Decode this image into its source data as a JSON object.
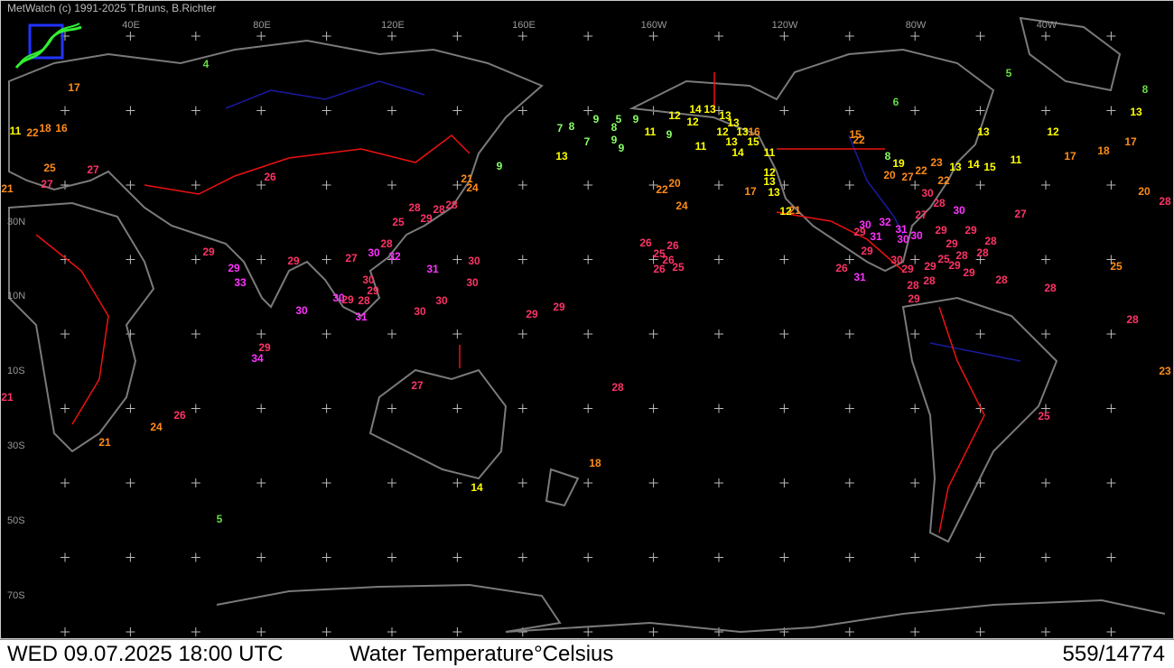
{
  "header": {
    "credit": "MetWatch  (c) 1991-2025 T.Bruns, B.Richter"
  },
  "longitude_labels": [
    "40E",
    "80E",
    "120E",
    "160E",
    "160W",
    "120W",
    "80W",
    "40W"
  ],
  "latitude_labels": [
    "30N",
    "10N",
    "10S",
    "30S",
    "50S",
    "70S"
  ],
  "footer": {
    "datetime": "WED 09.07.2025 18:00 UTC",
    "title": "Water Temperature°Celsius",
    "count": "559/14774"
  },
  "stations": [
    {
      "value": "4",
      "color": "#66dd44"
    },
    {
      "value": "5",
      "color": "#66dd44"
    },
    {
      "value": "8",
      "color": "#66dd44"
    },
    {
      "value": "6",
      "color": "#66dd44"
    },
    {
      "value": "13",
      "color": "#ffff00"
    },
    {
      "value": "12",
      "color": "#ffff00"
    },
    {
      "value": "13",
      "color": "#ffff00"
    },
    {
      "value": "11",
      "color": "#ffff00"
    },
    {
      "value": "17",
      "color": "#ff8c1a"
    },
    {
      "value": "17",
      "color": "#ff8c1a"
    },
    {
      "value": "18",
      "color": "#ff8c1a"
    },
    {
      "value": "7",
      "color": "#88ff66"
    },
    {
      "value": "8",
      "color": "#88ff66"
    },
    {
      "value": "9",
      "color": "#88ff66"
    },
    {
      "value": "5",
      "color": "#88ff66"
    },
    {
      "value": "9",
      "color": "#88ff66"
    },
    {
      "value": "8",
      "color": "#88ff66"
    },
    {
      "value": "9",
      "color": "#88ff66"
    },
    {
      "value": "9",
      "color": "#88ff66"
    },
    {
      "value": "7",
      "color": "#88ff66"
    },
    {
      "value": "11",
      "color": "#ffff00"
    },
    {
      "value": "9",
      "color": "#88ff66"
    },
    {
      "value": "13",
      "color": "#ffff00"
    },
    {
      "value": "9",
      "color": "#88ff66"
    },
    {
      "value": "12",
      "color": "#ffff00"
    },
    {
      "value": "12",
      "color": "#ffff00"
    },
    {
      "value": "14",
      "color": "#ffff00"
    },
    {
      "value": "13",
      "color": "#ffff00"
    },
    {
      "value": "13",
      "color": "#ffff00"
    },
    {
      "value": "13",
      "color": "#ffff00"
    },
    {
      "value": "12",
      "color": "#ffff00"
    },
    {
      "value": "13",
      "color": "#ffff00"
    },
    {
      "value": "16",
      "color": "#ff8c1a"
    },
    {
      "value": "13",
      "color": "#ffff00"
    },
    {
      "value": "15",
      "color": "#ffff00"
    },
    {
      "value": "14",
      "color": "#ffff00"
    },
    {
      "value": "11",
      "color": "#ffff00"
    },
    {
      "value": "11",
      "color": "#ffff00"
    },
    {
      "value": "12",
      "color": "#ffff00"
    },
    {
      "value": "13",
      "color": "#ffff00"
    },
    {
      "value": "13",
      "color": "#ffff00"
    },
    {
      "value": "17",
      "color": "#ff8c1a"
    },
    {
      "value": "12",
      "color": "#ffff00"
    },
    {
      "value": "21",
      "color": "#ff8c1a"
    },
    {
      "value": "15",
      "color": "#ff8c1a"
    },
    {
      "value": "22",
      "color": "#ff8c1a"
    },
    {
      "value": "8",
      "color": "#88ff66"
    },
    {
      "value": "19",
      "color": "#ffff00"
    },
    {
      "value": "22",
      "color": "#ff8c1a"
    },
    {
      "value": "23",
      "color": "#ff8c1a"
    },
    {
      "value": "13",
      "color": "#ffff00"
    },
    {
      "value": "14",
      "color": "#ffff00"
    },
    {
      "value": "15",
      "color": "#ffff00"
    },
    {
      "value": "20",
      "color": "#ff8c1a"
    },
    {
      "value": "27",
      "color": "#ff8c1a"
    },
    {
      "value": "22",
      "color": "#ff8c1a"
    },
    {
      "value": "30",
      "color": "#ff3366"
    },
    {
      "value": "28",
      "color": "#ff3366"
    },
    {
      "value": "27",
      "color": "#ff3366"
    },
    {
      "value": "30",
      "color": "#ff33ff"
    },
    {
      "value": "27",
      "color": "#ff3366"
    },
    {
      "value": "20",
      "color": "#ff8c1a"
    },
    {
      "value": "28",
      "color": "#ff3366"
    },
    {
      "value": "25",
      "color": "#ff8c1a"
    },
    {
      "value": "28",
      "color": "#ff3366"
    },
    {
      "value": "28",
      "color": "#ff3366"
    },
    {
      "value": "28",
      "color": "#ff3366"
    },
    {
      "value": "23",
      "color": "#ff8c1a"
    },
    {
      "value": "25",
      "color": "#ff3366"
    },
    {
      "value": "22",
      "color": "#ff8c1a"
    },
    {
      "value": "20",
      "color": "#ff8c1a"
    },
    {
      "value": "24",
      "color": "#ff8c1a"
    },
    {
      "value": "26",
      "color": "#ff3366"
    },
    {
      "value": "26",
      "color": "#ff3366"
    },
    {
      "value": "25",
      "color": "#ff3366"
    },
    {
      "value": "26",
      "color": "#ff3366"
    },
    {
      "value": "26",
      "color": "#ff3366"
    },
    {
      "value": "25",
      "color": "#ff3366"
    },
    {
      "value": "30",
      "color": "#ff33ff"
    },
    {
      "value": "32",
      "color": "#ff33ff"
    },
    {
      "value": "29",
      "color": "#ff3366"
    },
    {
      "value": "31",
      "color": "#ff33ff"
    },
    {
      "value": "31",
      "color": "#ff33ff"
    },
    {
      "value": "30",
      "color": "#ff33ff"
    },
    {
      "value": "30",
      "color": "#ff33ff"
    },
    {
      "value": "29",
      "color": "#ff3366"
    },
    {
      "value": "29",
      "color": "#ff3366"
    },
    {
      "value": "28",
      "color": "#ff3366"
    },
    {
      "value": "29",
      "color": "#ff3366"
    },
    {
      "value": "28",
      "color": "#ff3366"
    },
    {
      "value": "28",
      "color": "#ff3366"
    },
    {
      "value": "25",
      "color": "#ff3366"
    },
    {
      "value": "29",
      "color": "#ff3366"
    },
    {
      "value": "29",
      "color": "#ff3366"
    },
    {
      "value": "29",
      "color": "#ff3366"
    },
    {
      "value": "30",
      "color": "#ff3366"
    },
    {
      "value": "29",
      "color": "#ff3366"
    },
    {
      "value": "29",
      "color": "#ff3366"
    },
    {
      "value": "26",
      "color": "#ff3366"
    },
    {
      "value": "31",
      "color": "#ff33ff"
    },
    {
      "value": "28",
      "color": "#ff3366"
    },
    {
      "value": "28",
      "color": "#ff3366"
    },
    {
      "value": "29",
      "color": "#ff3366"
    },
    {
      "value": "26",
      "color": "#ff3366"
    },
    {
      "value": "21",
      "color": "#ff8c1a"
    },
    {
      "value": "24",
      "color": "#ff8c1a"
    },
    {
      "value": "25",
      "color": "#ff3366"
    },
    {
      "value": "28",
      "color": "#ff3366"
    },
    {
      "value": "28",
      "color": "#ff3366"
    },
    {
      "value": "28",
      "color": "#ff3366"
    },
    {
      "value": "29",
      "color": "#ff3366"
    },
    {
      "value": "28",
      "color": "#ff3366"
    },
    {
      "value": "30",
      "color": "#ff33ff"
    },
    {
      "value": "32",
      "color": "#ff33ff"
    },
    {
      "value": "27",
      "color": "#ff3366"
    },
    {
      "value": "31",
      "color": "#ff33ff"
    },
    {
      "value": "30",
      "color": "#ff3366"
    },
    {
      "value": "30",
      "color": "#ff3366"
    },
    {
      "value": "30",
      "color": "#ff3366"
    },
    {
      "value": "29",
      "color": "#ff3366"
    },
    {
      "value": "29",
      "color": "#ff3366"
    },
    {
      "value": "28",
      "color": "#ff3366"
    },
    {
      "value": "30",
      "color": "#ff33ff"
    },
    {
      "value": "30",
      "color": "#ff3366"
    },
    {
      "value": "31",
      "color": "#ff33ff"
    },
    {
      "value": "30",
      "color": "#ff3366"
    },
    {
      "value": "30",
      "color": "#ff33ff"
    },
    {
      "value": "29",
      "color": "#ff3366"
    },
    {
      "value": "29",
      "color": "#ff3366"
    },
    {
      "value": "29",
      "color": "#ff33ff"
    },
    {
      "value": "33",
      "color": "#ff33ff"
    },
    {
      "value": "29",
      "color": "#ff3366"
    },
    {
      "value": "34",
      "color": "#ff33ff"
    },
    {
      "value": "29",
      "color": "#ff3366"
    },
    {
      "value": "29",
      "color": "#ff3366"
    },
    {
      "value": "27",
      "color": "#ff3366"
    },
    {
      "value": "28",
      "color": "#ff3366"
    },
    {
      "value": "26",
      "color": "#ff3366"
    },
    {
      "value": "24",
      "color": "#ff8c1a"
    },
    {
      "value": "21",
      "color": "#ff8c1a"
    },
    {
      "value": "21",
      "color": "#ff3366"
    },
    {
      "value": "18",
      "color": "#ff8c1a"
    },
    {
      "value": "14",
      "color": "#ffff00"
    },
    {
      "value": "5",
      "color": "#66dd44"
    },
    {
      "value": "25",
      "color": "#ff8c1a"
    },
    {
      "value": "27",
      "color": "#ff3366"
    },
    {
      "value": "27",
      "color": "#ff3366"
    },
    {
      "value": "16",
      "color": "#ff8c1a"
    },
    {
      "value": "18",
      "color": "#ff8c1a"
    },
    {
      "value": "22",
      "color": "#ff8c1a"
    },
    {
      "value": "11",
      "color": "#ffff00"
    },
    {
      "value": "17",
      "color": "#ff8c1a"
    },
    {
      "value": "21",
      "color": "#ff8c1a"
    }
  ]
}
